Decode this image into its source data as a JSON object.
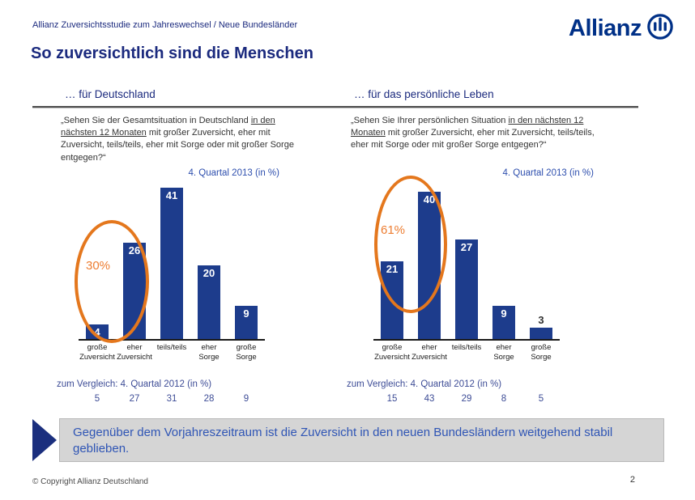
{
  "colors": {
    "allianz_blue": "#003087",
    "heading_blue": "#1b2a7e",
    "bar_blue": "#1d3c8c",
    "accent_orange": "#e4771d",
    "annotation_orange": "#ed7d31",
    "comparison_blue": "#3d4c96",
    "banner_bg": "#d5d5d5",
    "banner_text_blue": "#2f55b5"
  },
  "header": {
    "subtitle": "Allianz Zuversichtsstudie zum Jahreswechsel / Neue Bundesländer",
    "logo_text": "Allianz",
    "title": "So zuversichtlich sind die Menschen"
  },
  "columns": [
    {
      "heading": "… für Deutschland",
      "question_prefix": "„Sehen Sie der Gesamtsituation in Deutschland ",
      "question_underlined": "in den nächsten 12 Monaten",
      "question_suffix": " mit großer Zuversicht, eher mit Zuversicht, teils/teils, eher mit Sorge oder mit großer Sorge entgegen?“"
    },
    {
      "heading": "… für das persönliche Leben",
      "question_prefix": "„Sehen Sie Ihrer persönlichen Situation ",
      "question_underlined": "in den nächsten 12 Monaten",
      "question_suffix": " mit großer Zuversicht, eher mit Zuversicht, teils/teils, eher mit Sorge oder mit großer Sorge entgegen?“"
    }
  ],
  "chart_data": [
    {
      "type": "bar",
      "title": "4. Quartal 2013 (in %)",
      "categories": [
        "große Zuversicht",
        "eher Zuversicht",
        "teils/teils",
        "eher Sorge",
        "große Sorge"
      ],
      "values": [
        4,
        26,
        41,
        20,
        9
      ],
      "ylim": [
        0,
        43
      ],
      "grid": false,
      "bar_color": "#1d3c8c",
      "annotation": "30%",
      "comparison": {
        "label": "zum Vergleich: 4. Quartal 2012 (in %)",
        "values": [
          5,
          27,
          31,
          28,
          9
        ]
      }
    },
    {
      "type": "bar",
      "title": "4. Quartal 2013 (in %)",
      "categories": [
        "große Zuversicht",
        "eher Zuversicht",
        "teils/teils",
        "eher Sorge",
        "große Sorge"
      ],
      "values": [
        21,
        40,
        27,
        9,
        3
      ],
      "ylim": [
        0,
        43
      ],
      "grid": false,
      "bar_color": "#1d3c8c",
      "annotation": "61%",
      "comparison": {
        "label": "zum Vergleich: 4. Quartal 2012 (in %)",
        "values": [
          15,
          43,
          29,
          8,
          5
        ]
      }
    }
  ],
  "banner": {
    "text": "Gegenüber dem Vorjahreszeitraum ist die Zuversicht in den neuen Bundesländern weitgehend stabil geblieben."
  },
  "footer": {
    "copyright": "© Copyright Allianz Deutschland",
    "page_number": "2"
  }
}
